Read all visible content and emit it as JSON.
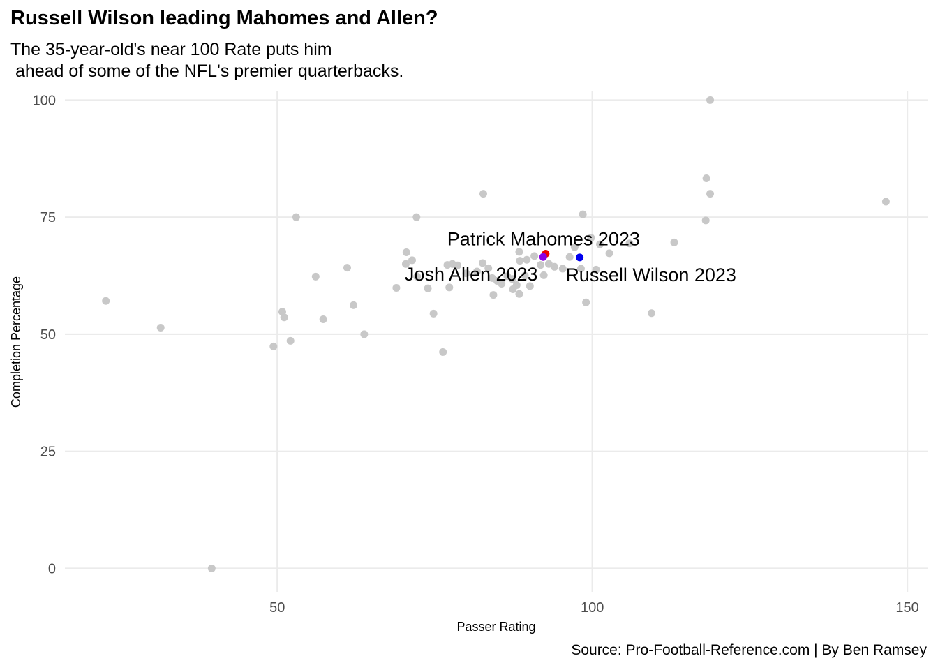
{
  "chart_data": {
    "type": "scatter",
    "title": "Russell Wilson leading Mahomes and Allen?",
    "subtitle": "The 35-year-old's near 100 Rate puts him\n ahead of some of the NFL's premier quarterbacks.",
    "caption": "Source: Pro-Football-Reference.com | By Ben Ramsey",
    "xlabel": "Passer Rating",
    "ylabel": "Completion Percentage",
    "xlim": [
      16.3,
      153.2
    ],
    "ylim": [
      -5,
      102
    ],
    "x_ticks": [
      50,
      100,
      150
    ],
    "y_ticks": [
      0,
      25,
      50,
      75,
      100
    ],
    "grid": true,
    "series": [
      {
        "color": "#c8c8c8",
        "points": [
          [
            22.8,
            57.1
          ],
          [
            31.5,
            51.4
          ],
          [
            39.6,
            0.0
          ],
          [
            49.4,
            47.4
          ],
          [
            50.8,
            54.8
          ],
          [
            51.1,
            53.6
          ],
          [
            52.1,
            48.6
          ],
          [
            53.0,
            75.0
          ],
          [
            56.1,
            62.3
          ],
          [
            57.3,
            53.2
          ],
          [
            61.1,
            64.2
          ],
          [
            62.1,
            56.2
          ],
          [
            63.8,
            50.0
          ],
          [
            68.9,
            59.9
          ],
          [
            70.4,
            65.0
          ],
          [
            70.5,
            67.5
          ],
          [
            71.4,
            65.8
          ],
          [
            72.1,
            75.0
          ],
          [
            72.2,
            62.3
          ],
          [
            73.9,
            59.8
          ],
          [
            74.8,
            54.4
          ],
          [
            76.3,
            46.2
          ],
          [
            77.0,
            64.8
          ],
          [
            77.3,
            60.0
          ],
          [
            77.8,
            65.0
          ],
          [
            78.6,
            64.7
          ],
          [
            80.0,
            63.0
          ],
          [
            81.7,
            63.4
          ],
          [
            82.6,
            65.2
          ],
          [
            82.7,
            80.0
          ],
          [
            83.5,
            64.1
          ],
          [
            84.1,
            62.0
          ],
          [
            84.3,
            58.4
          ],
          [
            84.9,
            61.4
          ],
          [
            85.6,
            60.8
          ],
          [
            86.5,
            62.4
          ],
          [
            87.3,
            61.8
          ],
          [
            87.4,
            59.6
          ],
          [
            88.0,
            60.5
          ],
          [
            88.4,
            58.6
          ],
          [
            88.4,
            67.6
          ],
          [
            88.5,
            65.7
          ],
          [
            89.3,
            62.5
          ],
          [
            89.6,
            65.9
          ],
          [
            90.1,
            60.3
          ],
          [
            90.8,
            66.7
          ],
          [
            91.8,
            64.8
          ],
          [
            92.3,
            62.6
          ],
          [
            93.1,
            65.0
          ],
          [
            94.0,
            64.4
          ],
          [
            95.3,
            64.0
          ],
          [
            96.4,
            66.5
          ],
          [
            97.2,
            68.6
          ],
          [
            98.2,
            64.0
          ],
          [
            98.5,
            75.6
          ],
          [
            99.0,
            56.8
          ],
          [
            99.8,
            70.6
          ],
          [
            100.6,
            63.8
          ],
          [
            101.2,
            69.2
          ],
          [
            102.7,
            67.3
          ],
          [
            105.9,
            69.4
          ],
          [
            109.4,
            54.5
          ],
          [
            113.0,
            69.6
          ],
          [
            118.0,
            74.3
          ],
          [
            118.1,
            83.3
          ],
          [
            118.7,
            80.0
          ],
          [
            118.7,
            100.0
          ],
          [
            146.6,
            78.3
          ]
        ]
      },
      {
        "name": "Patrick Mahomes 2023",
        "color": "#ee0000",
        "points": [
          [
            92.6,
            67.2
          ]
        ]
      },
      {
        "name": "Josh Allen 2023",
        "color": "#8a00e6",
        "points": [
          [
            92.2,
            66.5
          ]
        ]
      },
      {
        "name": "Russell Wilson 2023",
        "color": "#0000ee",
        "points": [
          [
            98.0,
            66.4
          ]
        ]
      }
    ]
  }
}
